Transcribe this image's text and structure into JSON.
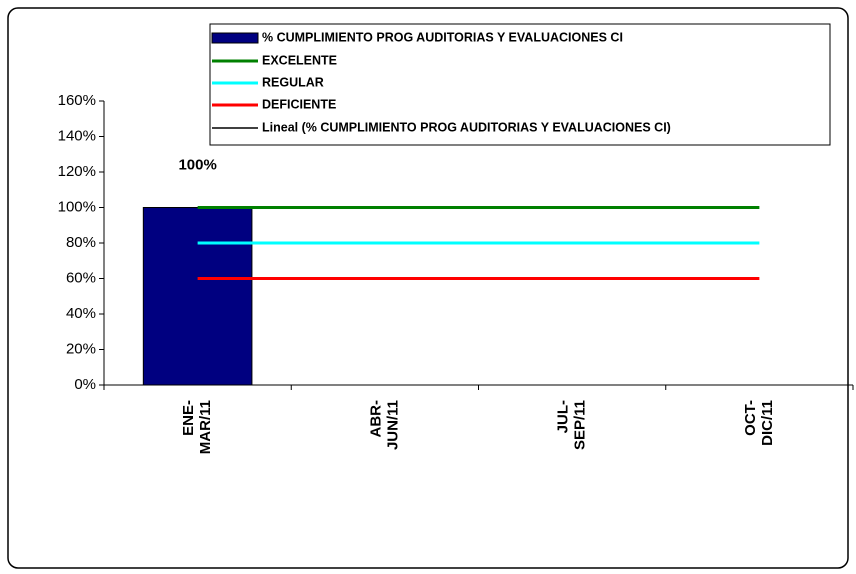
{
  "chart_data": {
    "type": "bar",
    "categories": [
      [
        "ENE-",
        "MAR/11"
      ],
      [
        "ABR-",
        "JUN/11"
      ],
      [
        "JUL-",
        "SEP/11"
      ],
      [
        "OCT-",
        "DIC/11"
      ]
    ],
    "series": [
      {
        "name": "% CUMPLIMIENTO PROG AUDITORIAS Y EVALUACIONES CI",
        "type": "bar",
        "color": "#000080",
        "values": [
          100,
          null,
          null,
          null
        ],
        "value_labels": [
          "100%",
          null,
          null,
          null
        ]
      },
      {
        "name": "EXCELENTE",
        "type": "line",
        "color": "#008000",
        "values": [
          100,
          100,
          100,
          100
        ]
      },
      {
        "name": "REGULAR",
        "type": "line",
        "color": "#00ffff",
        "values": [
          80,
          80,
          80,
          80
        ]
      },
      {
        "name": "DEFICIENTE",
        "type": "line",
        "color": "#ff0000",
        "values": [
          60,
          60,
          60,
          60
        ]
      },
      {
        "name": "Lineal (% CUMPLIMIENTO PROG AUDITORIAS Y EVALUACIONES CI)",
        "type": "trendline",
        "color": "#000000"
      }
    ],
    "ylim": [
      0,
      160
    ],
    "yticks": [
      {
        "value": 0,
        "label": "0%"
      },
      {
        "value": 20,
        "label": "20%"
      },
      {
        "value": 40,
        "label": "40%"
      },
      {
        "value": 60,
        "label": "60%"
      },
      {
        "value": 80,
        "label": "80%"
      },
      {
        "value": 100,
        "label": "100%"
      },
      {
        "value": 120,
        "label": "120%"
      },
      {
        "value": 140,
        "label": "140%"
      },
      {
        "value": 160,
        "label": "160%"
      }
    ],
    "legend": "top"
  }
}
